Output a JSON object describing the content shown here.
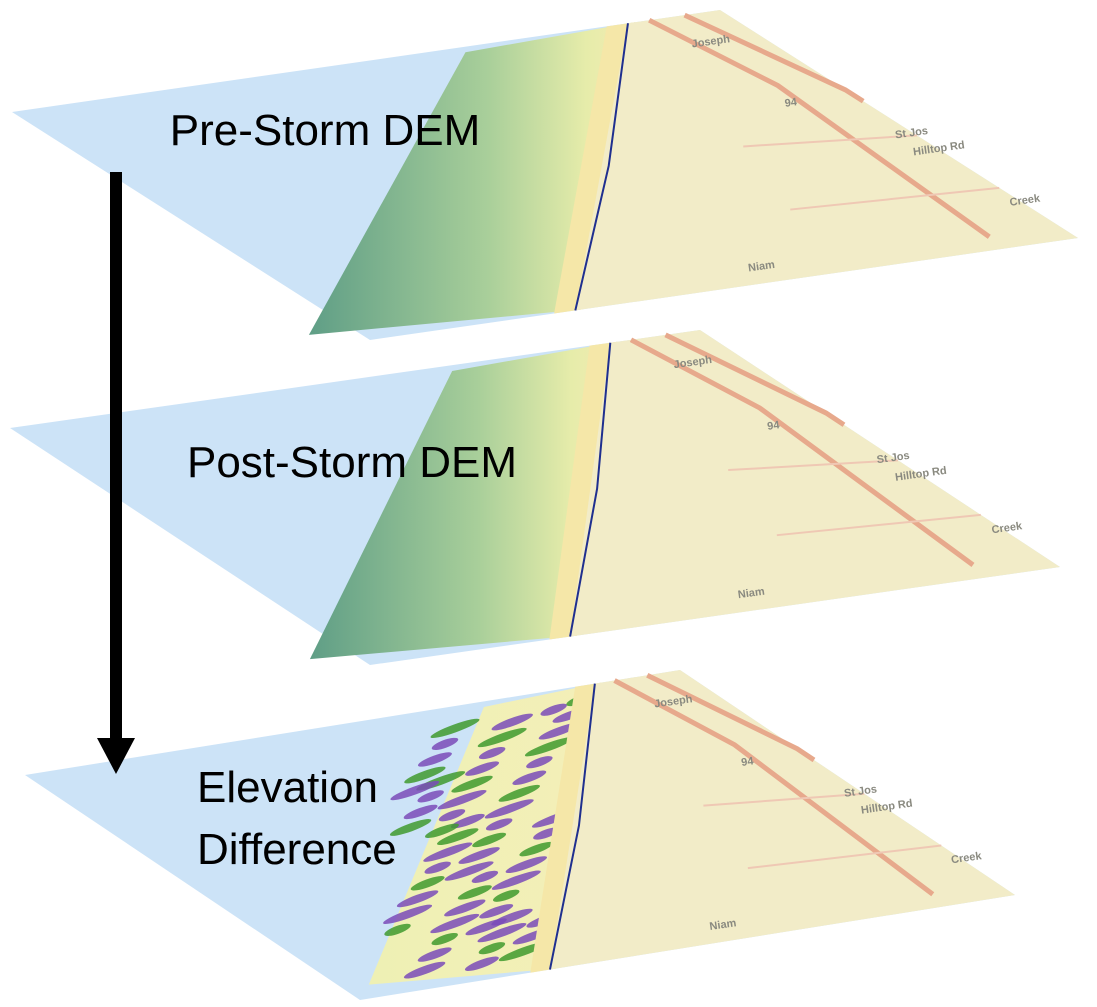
{
  "layers": [
    {
      "label": [
        "Pre-Storm DEM"
      ]
    },
    {
      "label": [
        "Post-Storm DEM"
      ]
    },
    {
      "label": [
        "Elevation",
        "Difference"
      ]
    }
  ],
  "map_labels": [
    "St Jos",
    "Hilltop Rd",
    "Creek",
    "94",
    "Joseph",
    "Niam"
  ]
}
